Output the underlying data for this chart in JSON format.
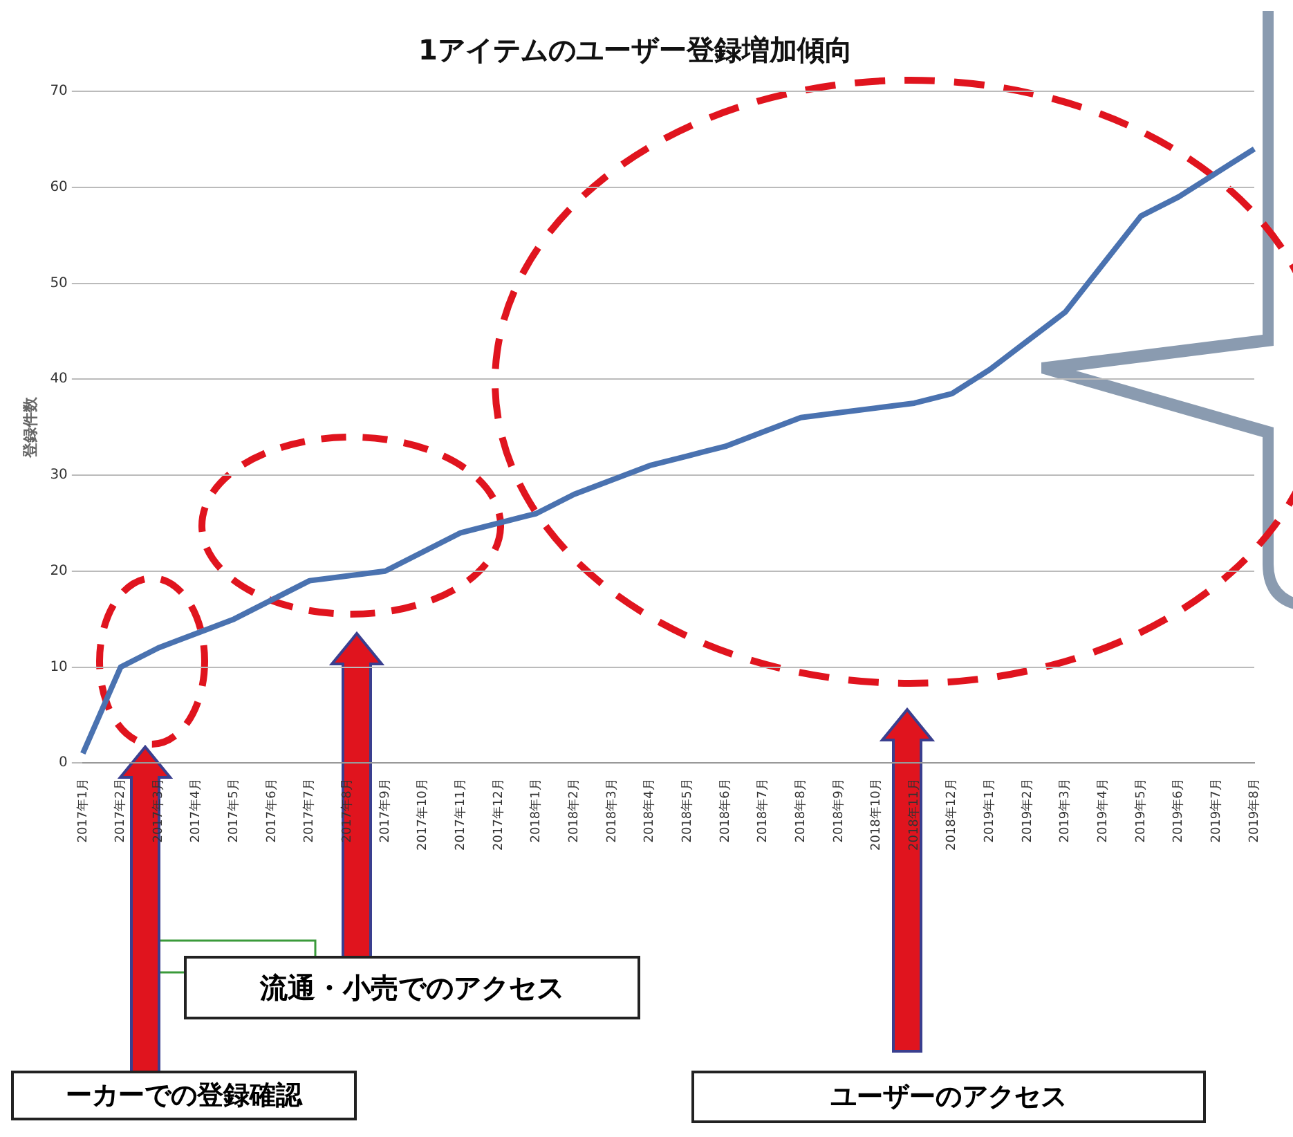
{
  "chart_data": {
    "type": "line",
    "title": "1アイテムのユーザー登録増加傾向",
    "ylabel": "登録件数",
    "categories": [
      "2017年1月",
      "2017年2月",
      "2017年3月",
      "2017年4月",
      "2017年5月",
      "2017年6月",
      "2017年7月",
      "2017年8月",
      "2017年9月",
      "2017年10月",
      "2017年11月",
      "2017年12月",
      "2018年1月",
      "2018年2月",
      "2018年3月",
      "2018年4月",
      "2018年5月",
      "2018年6月",
      "2018年7月",
      "2018年8月",
      "2018年9月",
      "2018年10月",
      "2018年11月",
      "2018年12月",
      "2019年1月",
      "2019年2月",
      "2019年3月",
      "2019年4月",
      "2019年5月",
      "2019年6月",
      "2019年7月",
      "2019年8月"
    ],
    "series": [
      {
        "color": "#4a72b0",
        "values": [
          1,
          10,
          12,
          13.5,
          15,
          17,
          19,
          19.5,
          20,
          22,
          24,
          25,
          26,
          28,
          29.5,
          31,
          32,
          33,
          34.5,
          36,
          36.5,
          37,
          37.5,
          38.5,
          41,
          44,
          47,
          52,
          57,
          59,
          61.5,
          64
        ]
      }
    ],
    "ylim": [
      0,
      70
    ],
    "yticks": [
      0,
      10,
      20,
      30,
      40,
      50,
      60,
      70
    ],
    "grid": "y",
    "annotations": [
      "流通・小売でのアクセス",
      "ーカーでの登録確認",
      "ユーザーのアクセス"
    ]
  }
}
